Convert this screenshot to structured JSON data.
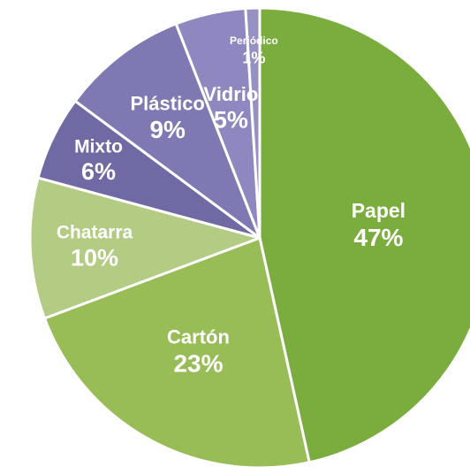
{
  "chart_data": {
    "type": "pie",
    "title": "",
    "start_angle_deg": 0,
    "direction": "clockwise",
    "slice_border_color": "#ffffff",
    "slices": [
      {
        "label": "Papel",
        "value": 47,
        "value_label": "47%",
        "color": "#7aad3e"
      },
      {
        "label": "Cartón",
        "value": 23,
        "value_label": "23%",
        "color": "#98bd57"
      },
      {
        "label": "Chatarra",
        "value": 10,
        "value_label": "10%",
        "color": "#b4cb83"
      },
      {
        "label": "Mixto",
        "value": 6,
        "value_label": "6%",
        "color": "#6f69a4"
      },
      {
        "label": "Plástico",
        "value": 9,
        "value_label": "9%",
        "color": "#7e79b2"
      },
      {
        "label": "Vidrio",
        "value": 5,
        "value_label": "5%",
        "color": "#8f88c0"
      },
      {
        "label": "Periódico",
        "value": 1,
        "value_label": "1%",
        "color": "#9790c3"
      }
    ]
  }
}
